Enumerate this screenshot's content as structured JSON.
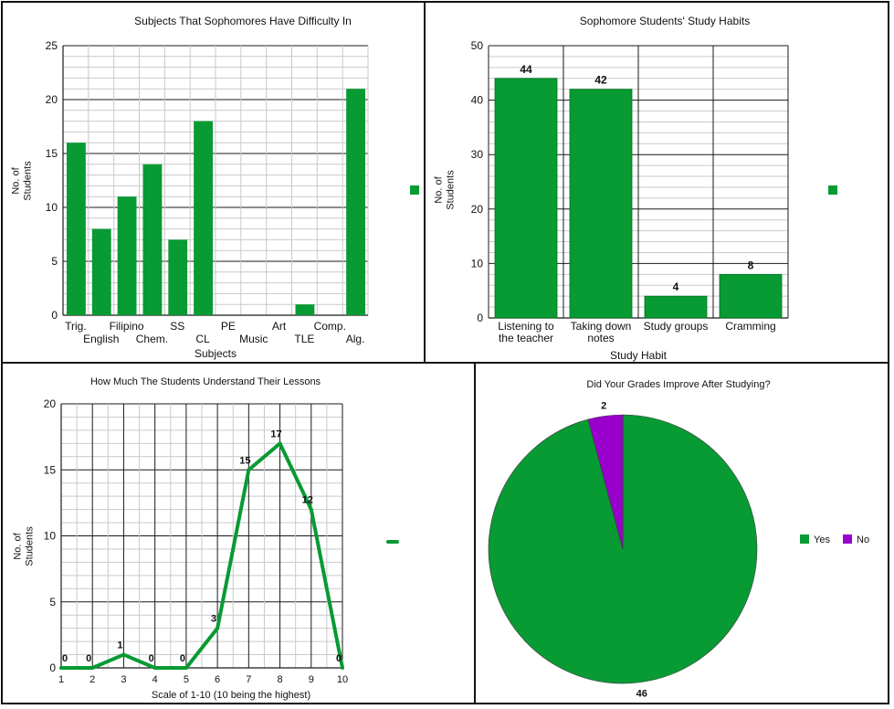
{
  "colors": {
    "green": "#089A33",
    "purple": "#9A00CC",
    "grid_major": "#1a1a1a",
    "grid_minor": "#c9c9c9"
  },
  "chart_data": [
    {
      "type": "bar",
      "title": "Subjects That Sophomores Have Difficulty In",
      "xlabel": "Subjects",
      "ylabel_lines": [
        "No. of",
        "Students"
      ],
      "categories": [
        "Trig.",
        "English",
        "Filipino",
        "Chem.",
        "SS",
        "CL",
        "PE",
        "Music",
        "Art",
        "TLE",
        "Comp.",
        "Alg."
      ],
      "values": [
        16,
        8,
        11,
        14,
        7,
        18,
        0,
        0,
        0,
        1,
        0,
        21
      ],
      "ylim": [
        0,
        25
      ],
      "yticks": [
        0,
        5,
        10,
        15,
        20,
        25
      ],
      "grid": true,
      "legend": "right",
      "color": "#089A33"
    },
    {
      "type": "bar",
      "title": "Sophomore Students' Study Habits",
      "xlabel": "Study Habit",
      "ylabel_lines": [
        "No. of",
        "Students"
      ],
      "categories": [
        [
          "Listening to",
          "the teacher"
        ],
        [
          "Taking down",
          "notes"
        ],
        [
          "Study groups"
        ],
        [
          "Cramming"
        ]
      ],
      "values": [
        44,
        42,
        4,
        8
      ],
      "data_labels": [
        "44",
        "42",
        "4",
        "8"
      ],
      "ylim": [
        0,
        50
      ],
      "yticks": [
        0,
        10,
        20,
        30,
        40,
        50
      ],
      "grid": true,
      "legend": "right",
      "color": "#089A33"
    },
    {
      "type": "line",
      "title": "How Much The Students Understand Their Lessons",
      "xlabel": "Scale of 1-10 (10 being the highest)",
      "ylabel_lines": [
        "No. of",
        "Students"
      ],
      "x": [
        1,
        2,
        3,
        4,
        5,
        6,
        7,
        8,
        9,
        10
      ],
      "values": [
        0,
        0,
        1,
        0,
        0,
        3,
        15,
        17,
        12,
        0
      ],
      "data_labels": [
        "0",
        "0",
        "1",
        "0",
        "0",
        "3",
        "15",
        "17",
        "12",
        "0"
      ],
      "xticks": [
        "1",
        "2",
        "3",
        "4",
        "5",
        "6",
        "7",
        "8",
        "9",
        "10"
      ],
      "ylim": [
        0,
        20
      ],
      "yticks": [
        0,
        5,
        10,
        15,
        20
      ],
      "grid": true,
      "legend": "right",
      "color": "#089A33"
    },
    {
      "type": "pie",
      "title": "Did Your Grades Improve After Studying?",
      "slices": [
        {
          "label": "Yes",
          "value": 46,
          "data_label": "46",
          "color": "#089A33"
        },
        {
          "label": "No",
          "value": 2,
          "data_label": "2",
          "color": "#9A00CC"
        }
      ],
      "legend": "right"
    }
  ]
}
